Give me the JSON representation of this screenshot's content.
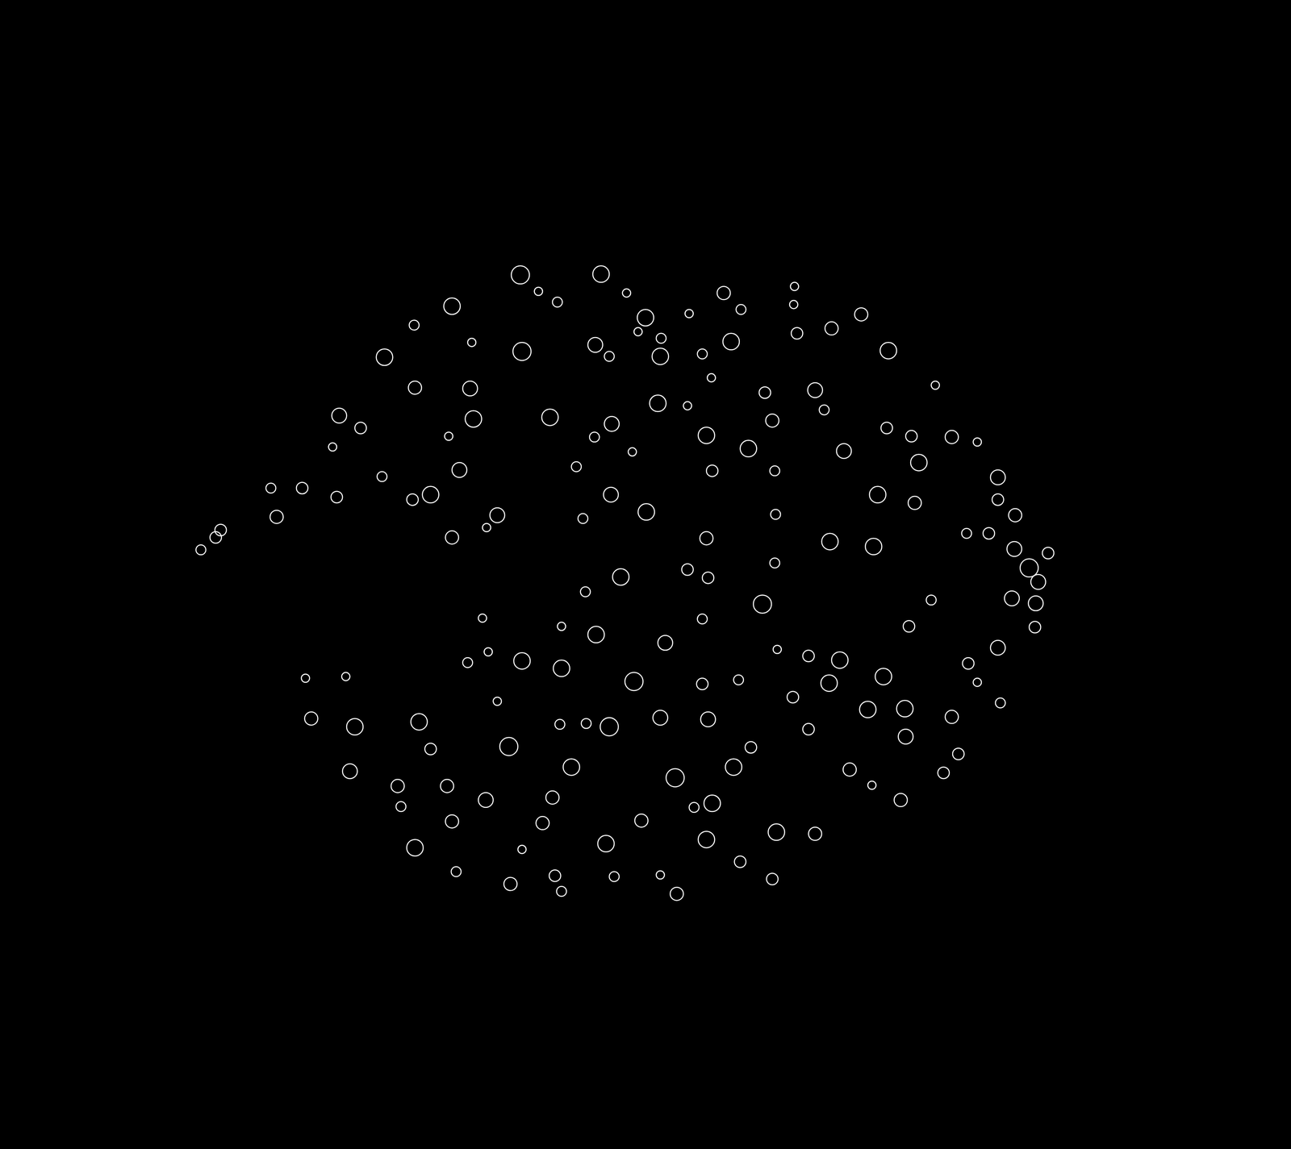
{
  "chart_data": {
    "type": "scatter",
    "marker": "circle-open",
    "color": "#ffffff",
    "background": "#000000",
    "tick_labels": false,
    "grid": false,
    "xlim": [
      0,
      1568
    ],
    "ylim": [
      1396,
      0
    ],
    "x": [
      632,
      730,
      654,
      677,
      761,
      879,
      965,
      964,
      900,
      549,
      503,
      784,
      837,
      775,
      803,
      968,
      1010,
      1046,
      573,
      634,
      723,
      740,
      802,
      853,
      888,
      1079,
      467,
      864,
      1136,
      504,
      571,
      929,
      990,
      799,
      835,
      1001,
      412,
      438,
      575,
      668,
      743,
      938,
      1077,
      545,
      722,
      858,
      1107,
      1156,
      1187,
      404,
      768,
      909,
      1025,
      1116,
      558,
      700,
      865,
      941,
      464,
      1212,
      329,
      367,
      409,
      501,
      523,
      742,
      1066,
      1111,
      1212,
      336,
      604,
      591,
      708,
      785,
      942,
      1233,
      268,
      262,
      244,
      549,
      858,
      1008,
      1061,
      1174,
      1201,
      1232,
      1273,
      941,
      835,
      860,
      754,
      1250,
      1261,
      711,
      926,
      1131,
      1229,
      1258,
      586,
      853,
      682,
      724,
      808,
      1104,
      1257,
      944,
      982,
      1020,
      1212,
      568,
      593,
      634,
      682,
      371,
      420,
      770,
      853,
      897,
      1007,
      1073,
      1176,
      1187,
      604,
      963,
      1215,
      378,
      431,
      509,
      680,
      712,
      740,
      802,
      860,
      982,
      1054,
      1099,
      1156,
      523,
      618,
      912,
      1100,
      1164,
      425,
      694,
      820,
      891,
      1032,
      1146,
      483,
      543,
      1059,
      590,
      671,
      843,
      865,
      1094,
      487,
      549,
      659,
      779,
      943,
      990,
      504,
      736,
      858,
      634,
      899,
      554,
      620,
      674,
      746,
      802,
      682,
      822,
      938
    ],
    "y": [
      334,
      333,
      354,
      367,
      356,
      356,
      348,
      370,
      376,
      372,
      395,
      386,
      381,
      403,
      411,
      405,
      399,
      382,
      416,
      427,
      419,
      433,
      433,
      430,
      415,
      426,
      434,
      459,
      468,
      471,
      472,
      477,
      474,
      490,
      493,
      498,
      505,
      520,
      509,
      507,
      515,
      511,
      520,
      530,
      531,
      529,
      530,
      531,
      537,
      543,
      549,
      545,
      548,
      562,
      571,
      567,
      572,
      572,
      579,
      580,
      593,
      593,
      604,
      607,
      601,
      601,
      601,
      611,
      607,
      628,
      626,
      641,
      630,
      622,
      625,
      626,
      644,
      653,
      668,
      653,
      654,
      658,
      664,
      648,
      648,
      667,
      672,
      684,
      692,
      702,
      701,
      690,
      707,
      719,
      734,
      729,
      727,
      733,
      751,
      752,
      761,
      771,
      781,
      761,
      762,
      789,
      797,
      802,
      787,
      805,
      792,
      803,
      812,
      824,
      822,
      828,
      831,
      826,
      830,
      822,
      806,
      829,
      852,
      847,
      854,
      873,
      883,
      877,
      880,
      879,
      883,
      872,
      874,
      886,
      862,
      861,
      871,
      910,
      907,
      908,
      895,
      916,
      937,
      932,
      945,
      932,
      935,
      939,
      955,
      955,
      954,
      972,
      969,
      981,
      976,
      972,
      980,
      998,
      1000,
      997,
      1011,
      1013,
      1030,
      1025,
      1020,
      1032,
      1047,
      1059,
      1074,
      1064,
      1065,
      1063,
      1083,
      1086,
      1068
    ],
    "sizes": [
      11,
      10,
      5,
      6,
      5,
      8,
      5,
      5,
      6,
      10,
      6,
      10,
      5,
      5,
      6,
      7,
      8,
      8,
      5,
      11,
      9,
      6,
      10,
      6,
      10,
      10,
      10,
      5,
      5,
      8,
      9,
      7,
      9,
      10,
      5,
      6,
      9,
      7,
      10,
      10,
      9,
      8,
      7,
      5,
      6,
      10,
      7,
      8,
      5,
      5,
      5,
      10,
      9,
      10,
      9,
      6,
      7,
      6,
      6,
      9,
      6,
      7,
      7,
      7,
      10,
      9,
      10,
      8,
      7,
      8,
      9,
      5,
      6,
      10,
      6,
      8,
      7,
      7,
      6,
      8,
      8,
      10,
      10,
      6,
      7,
      9,
      7,
      6,
      7,
      7,
      10,
      11,
      9,
      6,
      11,
      6,
      9,
      9,
      5,
      6,
      5,
      10,
      9,
      7,
      7,
      5,
      7,
      10,
      9,
      6,
      5,
      10,
      10,
      5,
      5,
      11,
      7,
      6,
      10,
      10,
      7,
      5,
      5,
      7,
      6,
      8,
      10,
      10,
      6,
      6,
      11,
      9,
      9,
      7,
      10,
      10,
      8,
      7,
      11,
      7,
      9,
      7,
      9,
      10,
      11,
      10,
      8,
      7,
      8,
      8,
      5,
      9,
      8,
      6,
      10,
      8,
      6,
      8,
      8,
      8,
      10,
      8,
      10,
      10,
      10,
      5,
      7,
      6,
      8,
      7,
      6,
      5,
      6,
      8,
      7
    ]
  }
}
